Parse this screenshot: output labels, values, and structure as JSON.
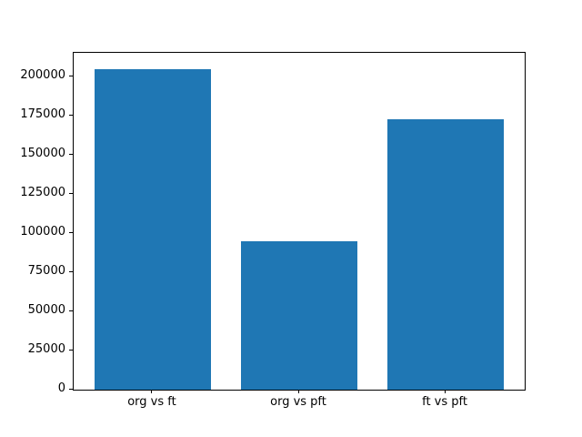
{
  "figure": {
    "background": "#ffffff"
  },
  "chart_data": {
    "type": "bar",
    "categories": [
      "org vs ft",
      "org vs pft",
      "ft vs pft"
    ],
    "values": [
      205000,
      95000,
      173000
    ],
    "title": "",
    "xlabel": "",
    "ylabel": "",
    "ylim": [
      0,
      215250
    ],
    "xlim": [
      -0.54,
      2.54
    ],
    "bar_width": 0.8,
    "bar_color": "#1f77b4",
    "spine_color": "#000000",
    "tick_color": "#000000",
    "yticks": [
      0,
      25000,
      50000,
      75000,
      100000,
      125000,
      150000,
      175000,
      200000
    ],
    "ytick_labels": [
      "0",
      "25000",
      "50000",
      "75000",
      "100000",
      "125000",
      "150000",
      "175000",
      "200000"
    ],
    "grid": false,
    "legend": null
  }
}
